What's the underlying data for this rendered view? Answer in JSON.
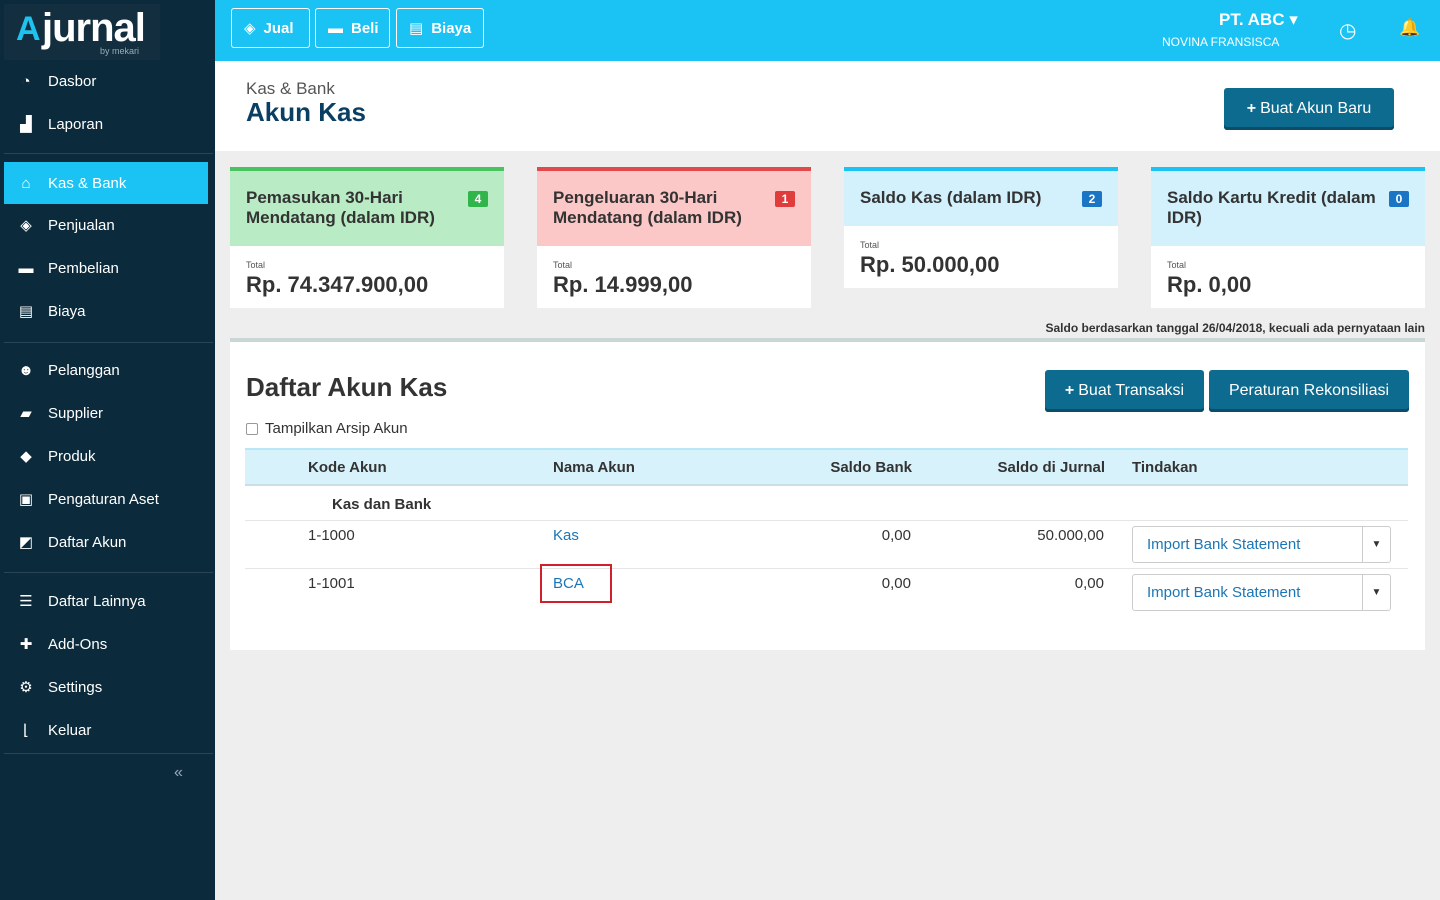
{
  "brand": {
    "name": "jurnal",
    "sub": "by mekari"
  },
  "sidebar": {
    "items": [
      {
        "label": "Dasbor",
        "icon": "dashboard-icon",
        "glyph": "◔"
      },
      {
        "label": "Laporan",
        "icon": "report-chart-icon",
        "glyph": "▟"
      },
      {
        "label": "Kas & Bank",
        "icon": "bank-icon",
        "glyph": "⌂"
      },
      {
        "label": "Penjualan",
        "icon": "tag-icon",
        "glyph": "◈"
      },
      {
        "label": "Pembelian",
        "icon": "card-icon",
        "glyph": "▬"
      },
      {
        "label": "Biaya",
        "icon": "receipt-icon",
        "glyph": "▤"
      },
      {
        "label": "Pelanggan",
        "icon": "users-icon",
        "glyph": "☻"
      },
      {
        "label": "Supplier",
        "icon": "truck-icon",
        "glyph": "▰"
      },
      {
        "label": "Produk",
        "icon": "box-icon",
        "glyph": "◆"
      },
      {
        "label": "Pengaturan Aset",
        "icon": "asset-icon",
        "glyph": "▣"
      },
      {
        "label": "Daftar Akun",
        "icon": "book-icon",
        "glyph": "◩"
      },
      {
        "label": "Daftar Lainnya",
        "icon": "list-icon",
        "glyph": "☰"
      },
      {
        "label": "Add-Ons",
        "icon": "puzzle-icon",
        "glyph": "✚"
      },
      {
        "label": "Settings",
        "icon": "gear-icon",
        "glyph": "⚙"
      },
      {
        "label": "Keluar",
        "icon": "logout-icon",
        "glyph": "⌊"
      }
    ],
    "collapse_glyph": "«"
  },
  "topbar": {
    "buttons": [
      {
        "label": "Jual",
        "icon": "tag-icon",
        "glyph": "◈"
      },
      {
        "label": "Beli",
        "icon": "card-icon",
        "glyph": "▬"
      },
      {
        "label": "Biaya",
        "icon": "receipt-icon",
        "glyph": "▤"
      }
    ],
    "company": "PT. ABC",
    "company_caret": "▾",
    "user": "NOVINA FRANSISCA",
    "clock_glyph": "◷",
    "bell_glyph": "🔔"
  },
  "header": {
    "breadcrumb": "Kas & Bank",
    "title": "Akun Kas",
    "new_account_button": "Buat Akun Baru",
    "plus": "+"
  },
  "cards": [
    {
      "title": "Pemasukan 30-Hari Mendatang (dalam IDR)",
      "badge": "4",
      "total_label": "Total",
      "total": "Rp. 74.347.900,00",
      "head_color": "#b9ecc4",
      "top_color": "#48c35f",
      "badge_color": "#2fb54a"
    },
    {
      "title": "Pengeluaran 30-Hari Mendatang (dalam IDR)",
      "badge": "1",
      "total_label": "Total",
      "total": "Rp. 14.999,00",
      "head_color": "#fbc7c7",
      "top_color": "#e04a4a",
      "badge_color": "#e03c3c"
    },
    {
      "title": "Saldo Kas (dalam IDR)",
      "badge": "2",
      "total_label": "Total",
      "total": "Rp. 50.000,00",
      "head_color": "#d2f1fc",
      "top_color": "#1bc3f4",
      "badge_color": "#1a76c5"
    },
    {
      "title": "Saldo Kartu Kredit (dalam IDR)",
      "badge": "0",
      "total_label": "Total",
      "total": "Rp. 0,00",
      "head_color": "#d2f1fc",
      "top_color": "#1bc3f4",
      "badge_color": "#1a76c5"
    }
  ],
  "balance_note": "Saldo berdasarkan tanggal 26/04/2018, kecuali ada pernyataan lain",
  "list": {
    "title": "Daftar Akun Kas",
    "create_transaction": "Buat Transaksi",
    "reconcile_rules": "Peraturan Rekonsiliasi",
    "show_archive": "Tampilkan Arsip Akun",
    "columns": [
      "Kode Akun",
      "Nama Akun",
      "Saldo Bank",
      "Saldo di Jurnal",
      "Tindakan"
    ],
    "group": "Kas dan Bank",
    "rows": [
      {
        "code": "1-1000",
        "name": "Kas",
        "bank_balance": "0,00",
        "journal_balance": "50.000,00",
        "action": "Import Bank Statement"
      },
      {
        "code": "1-1001",
        "name": "BCA",
        "bank_balance": "0,00",
        "journal_balance": "0,00",
        "action": "Import Bank Statement"
      }
    ],
    "caret": "▼"
  }
}
